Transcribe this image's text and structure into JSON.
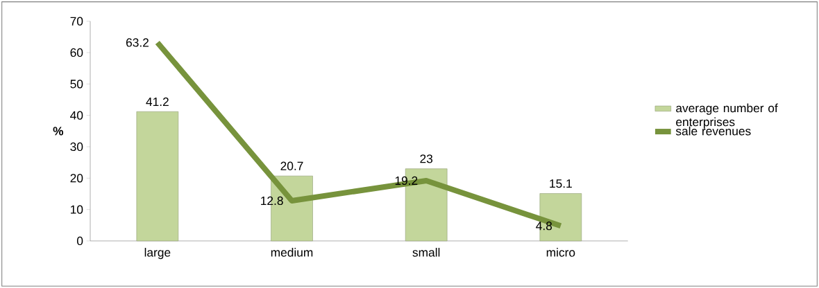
{
  "chart_data": {
    "type": "bar",
    "ylabel": "%",
    "categories": [
      "large",
      "medium",
      "small",
      "micro"
    ],
    "series": [
      {
        "name": "average number of enterprises",
        "color": "#c3d69b",
        "values": [
          41.2,
          20.7,
          23,
          15.1
        ]
      },
      {
        "name": "sale revenues",
        "type": "line",
        "color": "#77933c",
        "values": [
          63.2,
          12.8,
          19.2,
          4.8
        ]
      }
    ],
    "ylim": [
      0,
      70
    ],
    "yticks": [
      0,
      10,
      20,
      30,
      40,
      50,
      60,
      70
    ],
    "data_labels": true,
    "legend": "right"
  }
}
